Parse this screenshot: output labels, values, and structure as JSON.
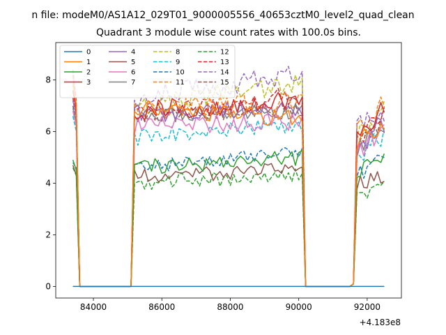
{
  "chart_data": {
    "type": "line",
    "suptitle": "n file: modeM0/AS1A12_029T01_9000005556_40653cztM0_level2_quad_clean",
    "title": "Quadrant 3 module wise count rates with 100.0s bins.",
    "xlabel": "",
    "ylabel": "",
    "x_offset_label": "+4.183e8",
    "xlim": [
      82900,
      93000
    ],
    "ylim": [
      -0.45,
      9.45
    ],
    "x_ticks": [
      84000,
      86000,
      88000,
      90000,
      92000
    ],
    "x_tick_labels": [
      "84000",
      "86000",
      "88000",
      "90000",
      "92000"
    ],
    "y_ticks": [
      0,
      2,
      4,
      6,
      8
    ],
    "y_tick_labels": [
      "0",
      "2",
      "4",
      "6",
      "8"
    ],
    "grid": false,
    "legend_position": "top-left",
    "segments": [
      {
        "x_start": 83400,
        "x_end": 83500,
        "step": 100
      },
      {
        "x_start": 83600,
        "x_end": 85100,
        "step": 100
      },
      {
        "x_start": 85200,
        "x_end": 90100,
        "step": 100
      },
      {
        "x_start": 90200,
        "x_end": 91500,
        "step": 100
      },
      {
        "x_start": 91600,
        "x_end": 92500,
        "step": 100
      }
    ],
    "series": [
      {
        "name": "0",
        "color": "#1f77b4",
        "dash": false,
        "edge": [
          0,
          0
        ],
        "active": [
          0,
          0
        ],
        "pass": [
          0,
          0
        ],
        "noise": 0
      },
      {
        "name": "1",
        "color": "#ff7f0e",
        "dash": false,
        "edge": [
          8.2,
          7.0
        ],
        "active": [
          6.9,
          6.5
        ],
        "pass": [
          5.6,
          6.4
        ],
        "noise": 0.35
      },
      {
        "name": "2",
        "color": "#2ca02c",
        "dash": false,
        "edge": [
          4.9,
          4.5
        ],
        "active": [
          4.6,
          5.0
        ],
        "pass": [
          4.4,
          4.8
        ],
        "noise": 0.3
      },
      {
        "name": "3",
        "color": "#d62728",
        "dash": false,
        "edge": [
          7.6,
          6.8
        ],
        "active": [
          6.8,
          7.2
        ],
        "pass": [
          5.8,
          7.0
        ],
        "noise": 0.4
      },
      {
        "name": "4",
        "color": "#9467bd",
        "dash": false,
        "edge": [
          7.2,
          6.6
        ],
        "active": [
          6.7,
          6.9
        ],
        "pass": [
          5.2,
          6.4
        ],
        "noise": 0.35
      },
      {
        "name": "5",
        "color": "#8c564b",
        "dash": false,
        "edge": [
          4.7,
          4.3
        ],
        "active": [
          4.3,
          4.5
        ],
        "pass": [
          3.9,
          4.3
        ],
        "noise": 0.3
      },
      {
        "name": "6",
        "color": "#e377c2",
        "dash": false,
        "edge": [
          6.8,
          6.2
        ],
        "active": [
          6.2,
          6.4
        ],
        "pass": [
          5.1,
          6.2
        ],
        "noise": 0.35
      },
      {
        "name": "7",
        "color": "#7f7f7f",
        "dash": false,
        "edge": [
          6.9,
          6.4
        ],
        "active": [
          6.6,
          6.8
        ],
        "pass": [
          5.3,
          6.3
        ],
        "noise": 0.3
      },
      {
        "name": "8",
        "color": "#bcbd22",
        "dash": true,
        "edge": [
          7.9,
          6.8
        ],
        "active": [
          7.0,
          7.9
        ],
        "pass": [
          5.8,
          6.8
        ],
        "noise": 0.4
      },
      {
        "name": "9",
        "color": "#17becf",
        "dash": true,
        "edge": [
          6.6,
          6.0
        ],
        "active": [
          5.8,
          6.2
        ],
        "pass": [
          4.9,
          5.9
        ],
        "noise": 0.35
      },
      {
        "name": "10",
        "color": "#1f77b4",
        "dash": true,
        "edge": [
          4.8,
          4.6
        ],
        "active": [
          4.6,
          5.2
        ],
        "pass": [
          4.2,
          5.0
        ],
        "noise": 0.25
      },
      {
        "name": "11",
        "color": "#ff7f0e",
        "dash": true,
        "edge": [
          7.8,
          6.8
        ],
        "active": [
          6.8,
          7.2
        ],
        "pass": [
          5.8,
          7.0
        ],
        "noise": 0.4
      },
      {
        "name": "12",
        "color": "#2ca02c",
        "dash": true,
        "edge": [
          4.6,
          4.3
        ],
        "active": [
          4.0,
          4.3
        ],
        "pass": [
          3.3,
          4.0
        ],
        "noise": 0.3
      },
      {
        "name": "13",
        "color": "#d62728",
        "dash": true,
        "edge": [
          7.3,
          6.6
        ],
        "active": [
          6.6,
          7.4
        ],
        "pass": [
          5.4,
          6.7
        ],
        "noise": 0.4
      },
      {
        "name": "14",
        "color": "#9467bd",
        "dash": true,
        "edge": [
          8.4,
          7.2
        ],
        "active": [
          7.2,
          8.3
        ],
        "pass": [
          6.0,
          6.9
        ],
        "noise": 0.45
      },
      {
        "name": "15",
        "color": "#8c564b",
        "dash": true,
        "edge": [
          7.0,
          6.4
        ],
        "active": [
          6.6,
          6.9
        ],
        "pass": [
          5.4,
          6.3
        ],
        "noise": 0.3
      }
    ]
  }
}
